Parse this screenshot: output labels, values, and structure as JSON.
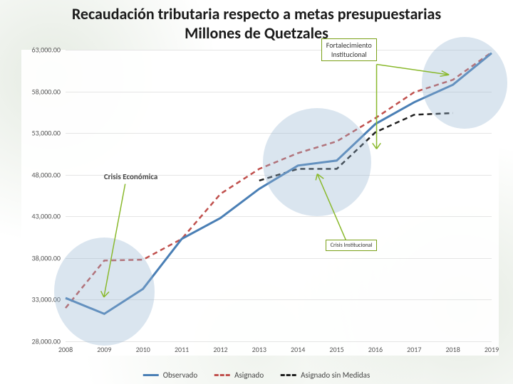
{
  "title_line1": "Recaudación tributaria respecto a metas presupuestarias",
  "title_line2": "Millones de Quetzales",
  "chart": {
    "type": "line",
    "x_categories": [
      "2008",
      "2009",
      "2010",
      "2011",
      "2012",
      "2013",
      "2014",
      "2015",
      "2016",
      "2017",
      "2018",
      "2019"
    ],
    "y_ticks": [
      "28,000.00",
      "33,000.00",
      "38,000.00",
      "43,000.00",
      "48,000.00",
      "53,000.00",
      "58,000.00",
      "63,000.00"
    ],
    "ymin": 28000,
    "ymax": 63000,
    "grid_color": "#e5e5e5",
    "background_color": "#ffffff",
    "series": {
      "observado": {
        "label": "Observado",
        "color": "#4a7fb5",
        "style": "solid",
        "width": 3,
        "values": [
          33200,
          31300,
          34300,
          40300,
          42800,
          46300,
          49100,
          49700,
          54100,
          56700,
          58800,
          62600
        ]
      },
      "asignado": {
        "label": "Asignado",
        "color": "#c0504d",
        "style": "dashed",
        "width": 2.5,
        "values": [
          32000,
          37700,
          37800,
          40300,
          45700,
          48700,
          50600,
          52000,
          54800,
          57900,
          59400,
          62700
        ]
      },
      "asignado_sin": {
        "label": "Asignado sin Medidas",
        "color": "#202020",
        "style": "dashed",
        "width": 2.5,
        "values": [
          null,
          null,
          null,
          null,
          null,
          47300,
          48700,
          48700,
          53100,
          55200,
          55400,
          null
        ]
      }
    },
    "highlights": [
      {
        "cx_year_idx": 1,
        "cy_value": 34000,
        "rx_years": 1.3,
        "ry_value": 6500,
        "color": "rgba(150,180,210,0.35)"
      },
      {
        "cx_year_idx": 6.5,
        "cy_value": 49500,
        "rx_years": 1.4,
        "ry_value": 6500,
        "color": "rgba(150,180,210,0.35)"
      },
      {
        "cx_year_idx": 10.3,
        "cy_value": 59000,
        "rx_years": 1.1,
        "ry_value": 5500,
        "color": "rgba(150,180,210,0.35)"
      }
    ],
    "callouts": {
      "fortalecimiento": {
        "text1": "Fortalecimiento",
        "text2": "Institucional",
        "border_color": "#7aa017"
      },
      "crisis_inst": {
        "text": "Crisis Institucional",
        "border_color": "#7aa017"
      },
      "crisis_econ": {
        "text": "Crisis Económica"
      }
    },
    "arrows": {
      "color": "#8ab92d"
    }
  },
  "legend": {
    "observado": "Observado",
    "asignado": "Asignado",
    "asignado_sin": "Asignado sin Medidas"
  }
}
